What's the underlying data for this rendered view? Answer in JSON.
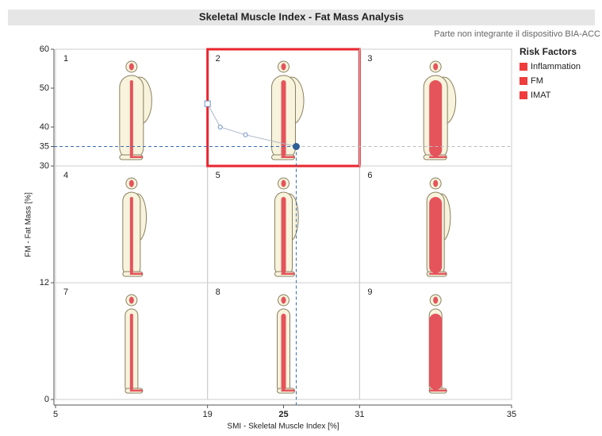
{
  "chart_data": {
    "type": "line",
    "title": "Skeletal Muscle Index - Fat Mass Analysis",
    "subtitle": "Parte non integrante il dispositivo BIA-ACC",
    "x_label": "SMI - Skeletal Muscle Index [%]",
    "y_label": "FM - Fat Mass [%]",
    "xlim": [
      5,
      35
    ],
    "xticks": [
      5,
      19,
      25,
      31,
      35
    ],
    "x_sections": [
      5,
      19,
      31,
      35
    ],
    "ylim": [
      0,
      60
    ],
    "yticks": [
      0,
      12,
      30,
      35,
      40,
      50,
      60
    ],
    "y_sections": [
      0,
      12,
      30,
      60
    ],
    "cells": [
      "7",
      "8",
      "9",
      "4",
      "5",
      "6",
      "1",
      "2",
      "3"
    ],
    "x": [
      19,
      20,
      22,
      26
    ],
    "values": [
      46,
      40,
      38,
      35
    ],
    "color": "#6f8fc0",
    "legend": {
      "title": "Risk Factors",
      "items": [
        "Inflammation",
        "FM",
        "IMAT"
      ],
      "color": "#f03c3c"
    }
  }
}
